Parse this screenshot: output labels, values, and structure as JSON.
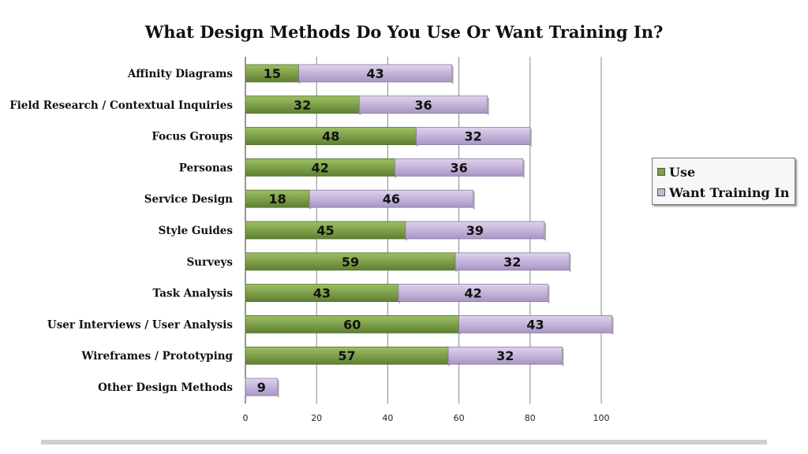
{
  "chart_data": {
    "type": "bar",
    "orientation": "horizontal",
    "stacked": true,
    "title": "What Design Methods Do You Use Or Want Training In?",
    "categories": [
      "Affinity Diagrams",
      "Field Research / Contextual Inquiries",
      "Focus Groups",
      "Personas",
      "Service Design",
      "Style Guides",
      "Surveys",
      "Task Analysis",
      "User Interviews / User Analysis",
      "Wireframes / Prototyping",
      "Other Design Methods"
    ],
    "series": [
      {
        "name": "Use",
        "color": "#7fa04a",
        "values": [
          15,
          32,
          48,
          42,
          18,
          45,
          59,
          43,
          60,
          57,
          null
        ]
      },
      {
        "name": "Want Training In",
        "color": "#c4b4da",
        "values": [
          43,
          36,
          32,
          36,
          46,
          39,
          32,
          42,
          43,
          32,
          9
        ]
      }
    ],
    "xlim": [
      0,
      100
    ],
    "xticks": [
      0,
      20,
      40,
      60,
      80,
      100
    ],
    "grid": true,
    "legend_position": "right"
  }
}
